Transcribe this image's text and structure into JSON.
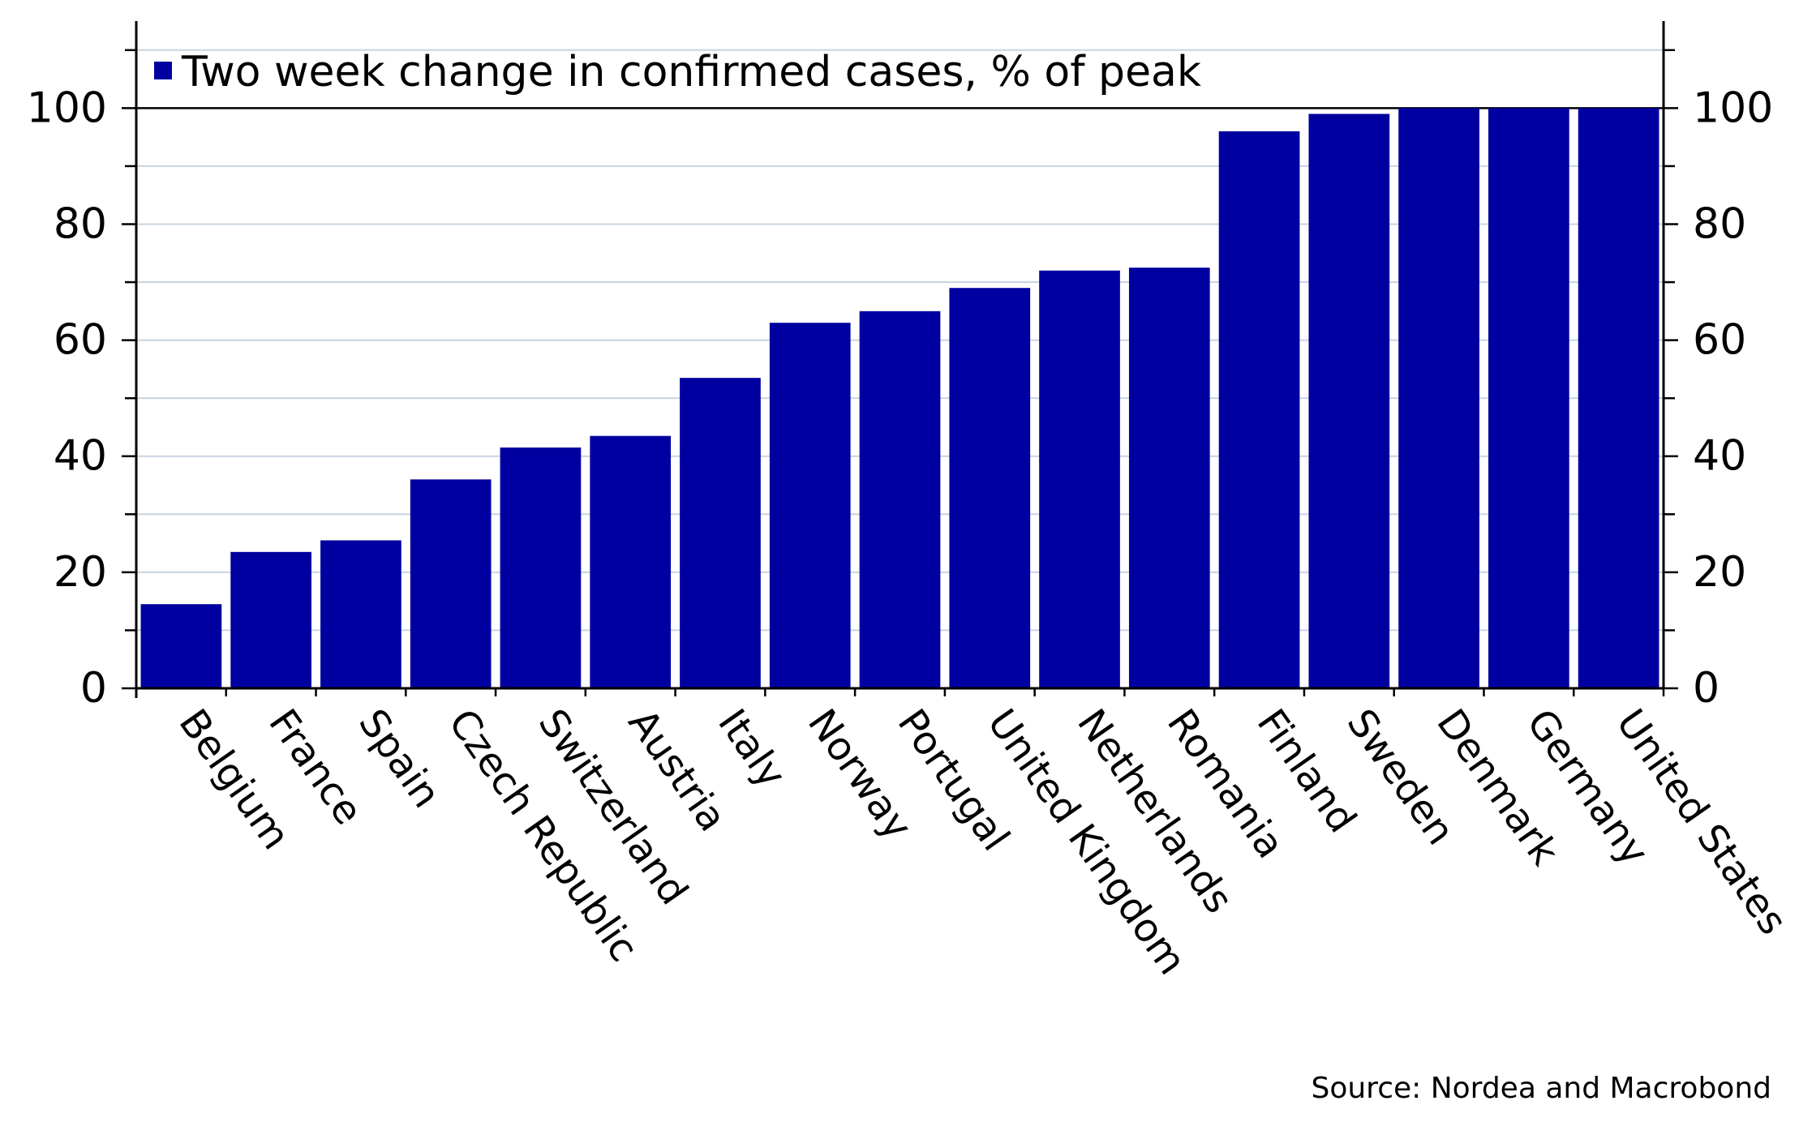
{
  "source_note": "Source: Nordea and Macrobond",
  "chart_data": {
    "type": "bar",
    "categories": [
      "Belgium",
      "France",
      "Spain",
      "Czech Republic",
      "Switzerland",
      "Austria",
      "Italy",
      "Norway",
      "Portugal",
      "United Kingdom",
      "Netherlands",
      "Romania",
      "Finland",
      "Sweden",
      "Denmark",
      "Germany",
      "United States"
    ],
    "series": [
      {
        "name": "Two week change in confirmed cases, % of peak",
        "color": "#0000a0",
        "values": [
          14.5,
          23.5,
          25.5,
          36,
          41.5,
          43.5,
          53.5,
          63,
          65,
          69,
          72,
          72.5,
          96,
          99,
          100,
          100,
          100
        ]
      }
    ],
    "ylim": [
      0,
      115
    ],
    "y_ticks": [
      "0",
      "20",
      "40",
      "60",
      "80",
      "100"
    ],
    "y_tick_values": [
      0,
      20,
      40,
      60,
      80,
      100
    ],
    "grid": true,
    "grid_color": "#c8d4e0",
    "legend_position": "top-left",
    "secondary_y_axis": true
  }
}
